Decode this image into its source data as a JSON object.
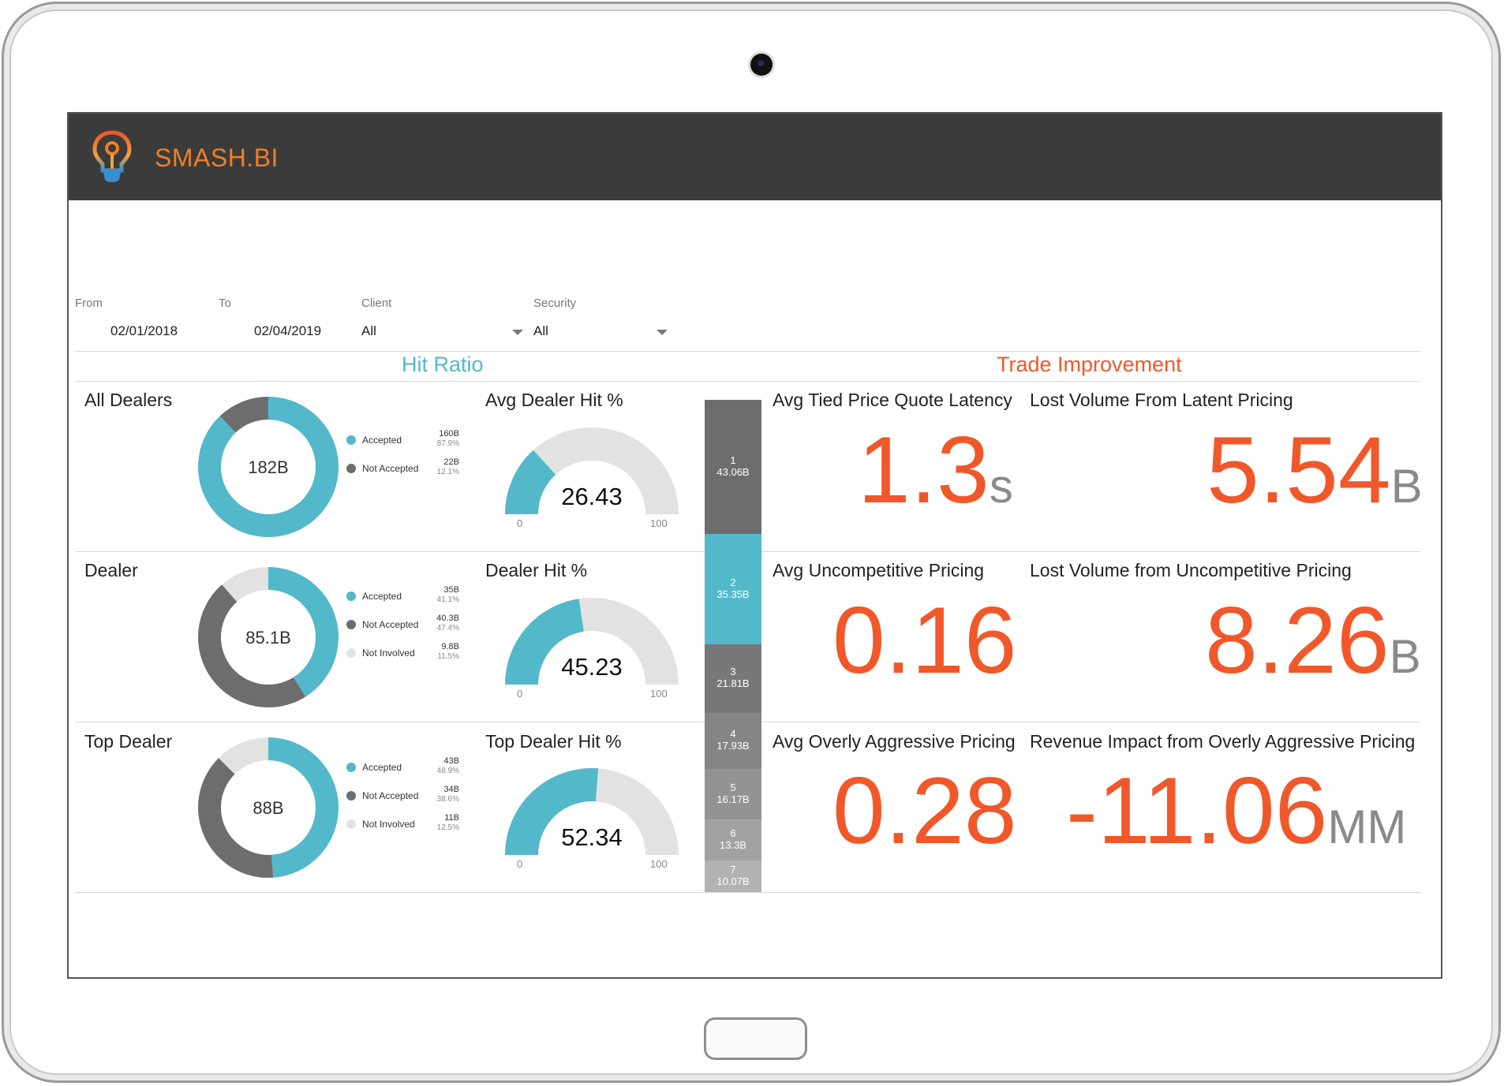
{
  "brand": {
    "name": "SMASH.BI"
  },
  "filters": {
    "from": {
      "label": "From",
      "value": "02/01/2018"
    },
    "to": {
      "label": "To",
      "value": "02/04/2019"
    },
    "client": {
      "label": "Client",
      "value": "All"
    },
    "security": {
      "label": "Security",
      "value": "All"
    }
  },
  "sections": {
    "hit_ratio": "Hit Ratio",
    "trade_improvement": "Trade Improvement"
  },
  "colors": {
    "accent": "#53b8ca",
    "dark": "#6d6d6d",
    "light": "#e2e2e2",
    "orange": "#f0582a",
    "brand": "#f07f2a"
  },
  "donuts": [
    {
      "title": "All Dealers",
      "center": "182B",
      "items": [
        {
          "label": "Accepted",
          "value": "160B",
          "pct": "87.9%",
          "frac": 0.879,
          "color": "#53b8ca"
        },
        {
          "label": "Not Accepted",
          "value": "22B",
          "pct": "12.1%",
          "frac": 0.121,
          "color": "#6d6d6d"
        }
      ]
    },
    {
      "title": "Dealer",
      "center": "85.1B",
      "items": [
        {
          "label": "Accepted",
          "value": "35B",
          "pct": "41.1%",
          "frac": 0.411,
          "color": "#53b8ca"
        },
        {
          "label": "Not Accepted",
          "value": "40.3B",
          "pct": "47.4%",
          "frac": 0.474,
          "color": "#6d6d6d"
        },
        {
          "label": "Not Involved",
          "value": "9.8B",
          "pct": "11.5%",
          "frac": 0.115,
          "color": "#e2e2e2"
        }
      ]
    },
    {
      "title": "Top Dealer",
      "center": "88B",
      "items": [
        {
          "label": "Accepted",
          "value": "43B",
          "pct": "48.9%",
          "frac": 0.489,
          "color": "#53b8ca"
        },
        {
          "label": "Not Accepted",
          "value": "34B",
          "pct": "38.6%",
          "frac": 0.386,
          "color": "#6d6d6d"
        },
        {
          "label": "Not Involved",
          "value": "11B",
          "pct": "12.5%",
          "frac": 0.125,
          "color": "#e2e2e2"
        }
      ]
    }
  ],
  "gauges": [
    {
      "title": "Avg Dealer Hit %",
      "value": "26.43",
      "num": 26.43,
      "min": "0",
      "max": "100"
    },
    {
      "title": "Dealer Hit %",
      "value": "45.23",
      "num": 45.23,
      "min": "0",
      "max": "100"
    },
    {
      "title": "Top Dealer Hit %",
      "value": "52.34",
      "num": 52.34,
      "min": "0",
      "max": "100"
    }
  ],
  "stacked_bar": [
    {
      "rank": "1",
      "value": "43.06B",
      "num": 43.06,
      "color": "#6d6d6d"
    },
    {
      "rank": "2",
      "value": "35.35B",
      "num": 35.35,
      "color": "#53b8ca"
    },
    {
      "rank": "3",
      "value": "21.81B",
      "num": 21.81,
      "color": "#787878"
    },
    {
      "rank": "4",
      "value": "17.93B",
      "num": 17.93,
      "color": "#858585"
    },
    {
      "rank": "5",
      "value": "16.17B",
      "num": 16.17,
      "color": "#939393"
    },
    {
      "rank": "6",
      "value": "13.3B",
      "num": 13.3,
      "color": "#a2a2a2"
    },
    {
      "rank": "7",
      "value": "10.07B",
      "num": 10.07,
      "color": "#b2b2b2"
    }
  ],
  "metrics": [
    {
      "title": "Avg Tied Price Quote Latency",
      "value": "1.3",
      "unit": "s"
    },
    {
      "title": "Lost Volume From Latent Pricing",
      "value": "5.54",
      "unit": "B"
    },
    {
      "title": "Avg Uncompetitive Pricing",
      "value": "0.16",
      "unit": ""
    },
    {
      "title": "Lost Volume from Uncompetitive Pricing",
      "value": "8.26",
      "unit": "B"
    },
    {
      "title": "Avg Overly Aggressive Pricing",
      "value": "0.28",
      "unit": ""
    },
    {
      "title": "Revenue Impact from Overly Aggressive Pricing",
      "value": "-11.06",
      "unit": "MM"
    }
  ]
}
